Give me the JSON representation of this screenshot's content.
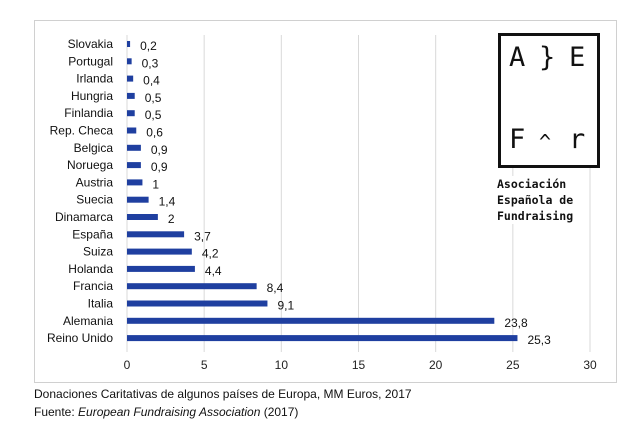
{
  "chart_data": {
    "type": "bar",
    "orientation": "horizontal",
    "categories": [
      "Slovakia",
      "Portugal",
      "Irlanda",
      "Hungria",
      "Finlandia",
      "Rep. Checa",
      "Belgica",
      "Noruega",
      "Austria",
      "Suecia",
      "Dinamarca",
      "España",
      "Suiza",
      "Holanda",
      "Francia",
      "Italia",
      "Alemania",
      "Reino Unido"
    ],
    "values": [
      0.2,
      0.3,
      0.4,
      0.5,
      0.5,
      0.6,
      0.9,
      0.9,
      1,
      1.4,
      2,
      3.7,
      4.2,
      4.4,
      8.4,
      9.1,
      23.8,
      25.3
    ],
    "data_labels": [
      "0,2",
      "0,3",
      "0,4",
      "0,5",
      "0,5",
      "0,6",
      "0,9",
      "0,9",
      "1",
      "1,4",
      "2",
      "3,7",
      "4,2",
      "4,4",
      "8,4",
      "9,1",
      "23,8",
      "25,3"
    ],
    "xlim": [
      0,
      30
    ],
    "xticks": [
      "0",
      "5",
      "10",
      "15",
      "20",
      "25",
      "30"
    ],
    "grid": true,
    "bar_color": "#1f3fa0",
    "title": "",
    "xlabel": "",
    "ylabel": ""
  },
  "caption": {
    "line1": "Donaciones Caritativas de algunos países de Europa, MM Euros, 2017",
    "source_prefix": "Fuente: ",
    "source_name": "European Fundraising Association",
    "source_year": " (2017)"
  },
  "logo": {
    "glyphs": [
      "A",
      "}",
      "E",
      "F",
      "^",
      "r"
    ],
    "text_lines": [
      "Asociación",
      "Española de",
      "Fundraising"
    ]
  }
}
